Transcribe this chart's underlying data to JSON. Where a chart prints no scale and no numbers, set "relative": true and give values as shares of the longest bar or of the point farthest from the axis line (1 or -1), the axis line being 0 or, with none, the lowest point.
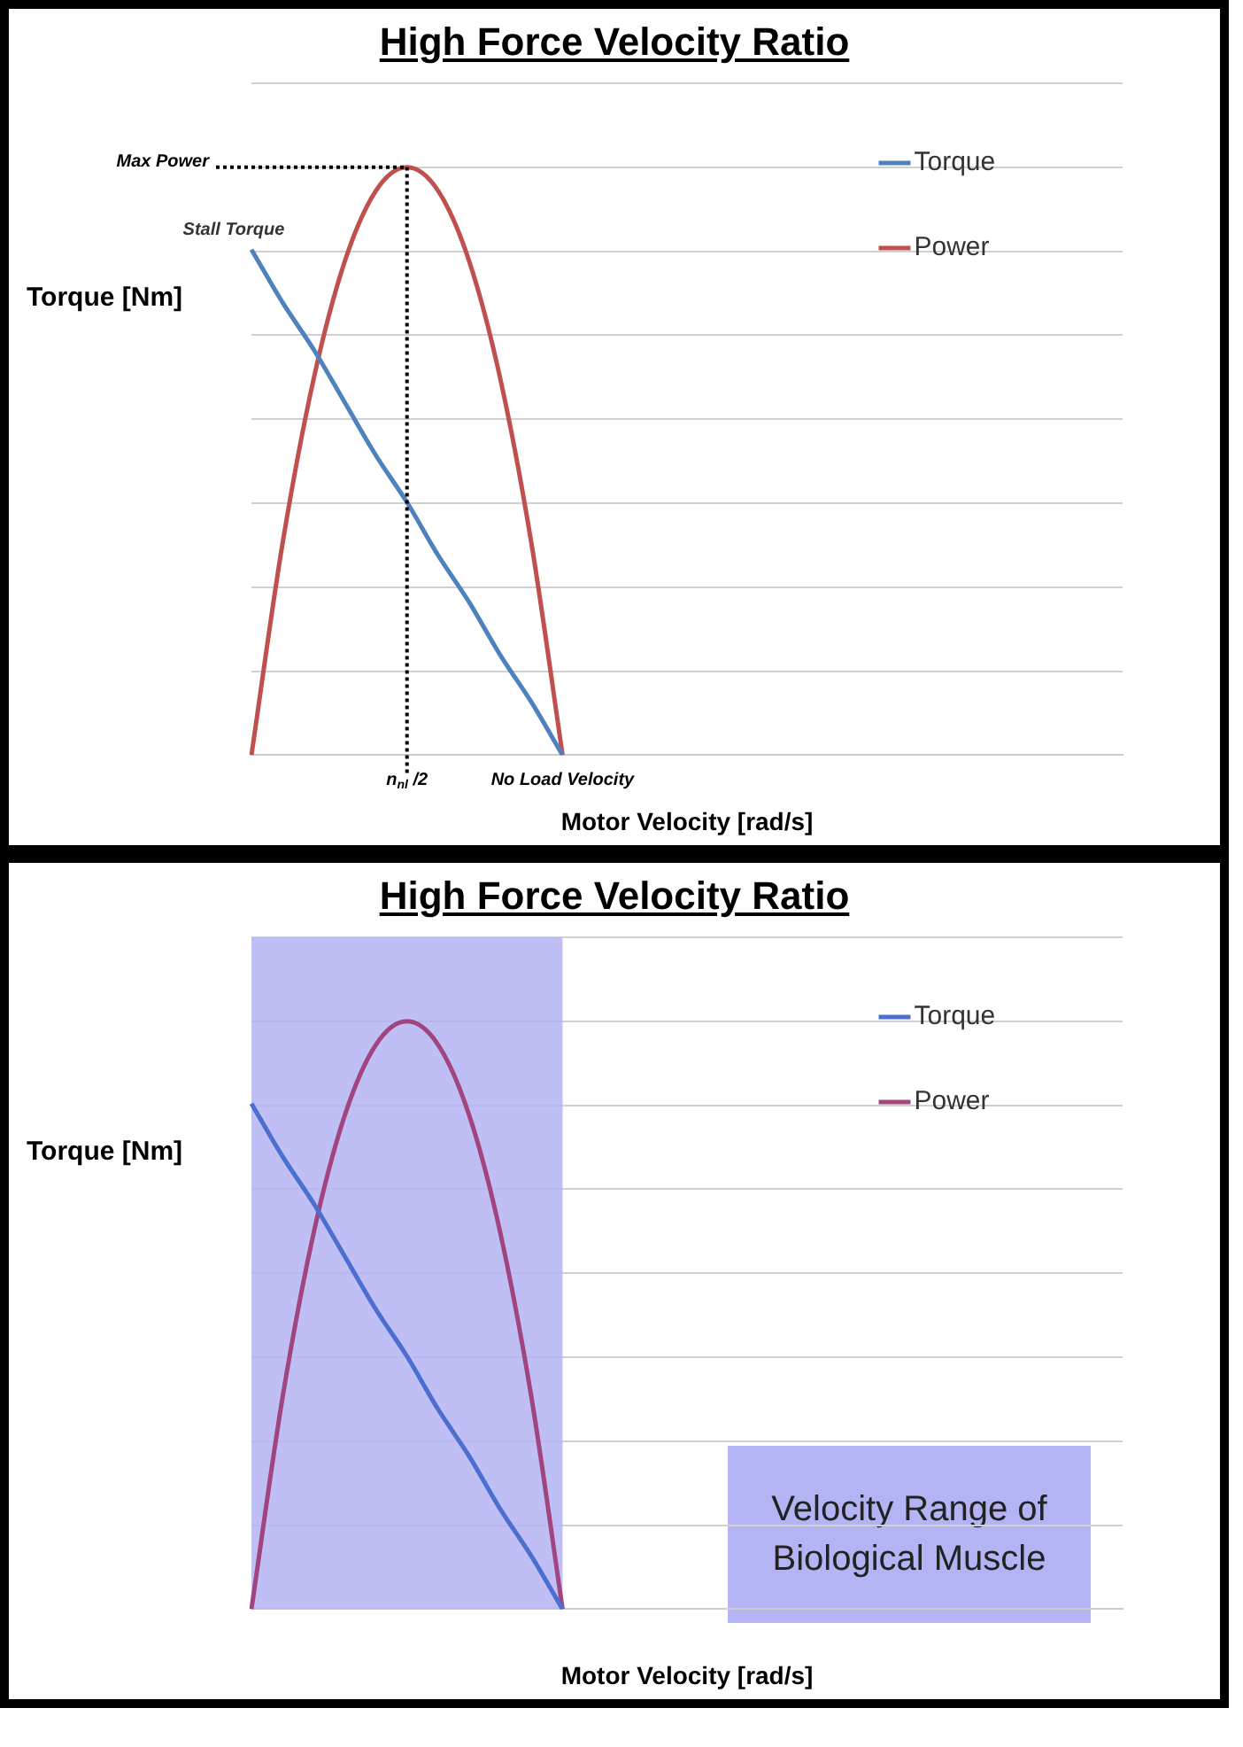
{
  "chart_data": [
    {
      "type": "line",
      "title": "High Force Velocity Ratio",
      "xlabel": "Motor Velocity [rad/s]",
      "ylabel": "Torque [Nm]",
      "relative": true,
      "grid": "y",
      "legend": "top right",
      "tick_labels": "x",
      "marker": "none",
      "categories": [
        null,
        null,
        null,
        null,
        null,
        "n$_{nl}$ /2",
        null,
        null,
        null,
        null,
        "No Load Velocity",
        null,
        null,
        null,
        null,
        null,
        null,
        null,
        null,
        null,
        null,
        null,
        null,
        null,
        null,
        null,
        null,
        null,
        null
      ],
      "series": [
        {
          "name": "Torque",
          "color": "#4f81bd",
          "values": [
            0.86,
            0.77,
            0.69,
            0.6,
            0.51,
            0.43,
            0.34,
            0.26,
            0.17,
            0.09,
            0,
            null,
            null,
            null,
            null,
            null,
            null,
            null,
            null,
            null,
            null,
            null,
            null,
            null,
            null,
            null,
            null,
            null,
            null
          ]
        },
        {
          "name": "Power",
          "color": "#c0504d",
          "values": [
            0,
            0.36,
            0.64,
            0.84,
            0.96,
            1,
            0.96,
            0.84,
            0.64,
            0.36,
            0,
            null,
            null,
            null,
            null,
            null,
            null,
            null,
            null,
            null,
            null,
            null,
            null,
            null,
            null,
            null,
            null,
            null,
            null
          ]
        }
      ],
      "ref_lines": [
        {
          "axis": "y",
          "value": 1,
          "label": "Max Power",
          "line_style": "dotted",
          "color": "#000000"
        },
        {
          "axis": "x",
          "value": "n$_{nl}$ /2",
          "line_style": "dotted",
          "color": "#000000"
        }
      ],
      "annotations": [
        "Stall Torque"
      ]
    },
    {
      "type": "line",
      "title": "High Force Velocity Ratio",
      "xlabel": "Motor Velocity [rad/s]",
      "ylabel": "Torque [Nm]",
      "relative": true,
      "grid": "y",
      "legend": "top right",
      "tick_labels": false,
      "marker": "none",
      "categories": [
        null,
        null,
        null,
        null,
        null,
        null,
        null,
        null,
        null,
        null,
        null,
        null,
        null,
        null,
        null,
        null,
        null,
        null,
        null,
        null,
        null,
        null,
        null,
        null,
        null,
        null,
        null,
        null,
        null
      ],
      "series": [
        {
          "name": "Torque",
          "color": "#4a6fcf",
          "values": [
            0.86,
            0.77,
            0.69,
            0.6,
            0.51,
            0.43,
            0.34,
            0.26,
            0.17,
            0.09,
            0,
            null,
            null,
            null,
            null,
            null,
            null,
            null,
            null,
            null,
            null,
            null,
            null,
            null,
            null,
            null,
            null,
            null,
            null
          ]
        },
        {
          "name": "Power",
          "color": "#a0457f",
          "values": [
            0,
            0.36,
            0.64,
            0.84,
            0.96,
            1,
            0.96,
            0.84,
            0.64,
            0.36,
            0,
            null,
            null,
            null,
            null,
            null,
            null,
            null,
            null,
            null,
            null,
            null,
            null,
            null,
            null,
            null,
            null,
            null,
            null
          ]
        }
      ],
      "annotations": [
        "Velocity Range of Biological Muscle"
      ]
    }
  ]
}
